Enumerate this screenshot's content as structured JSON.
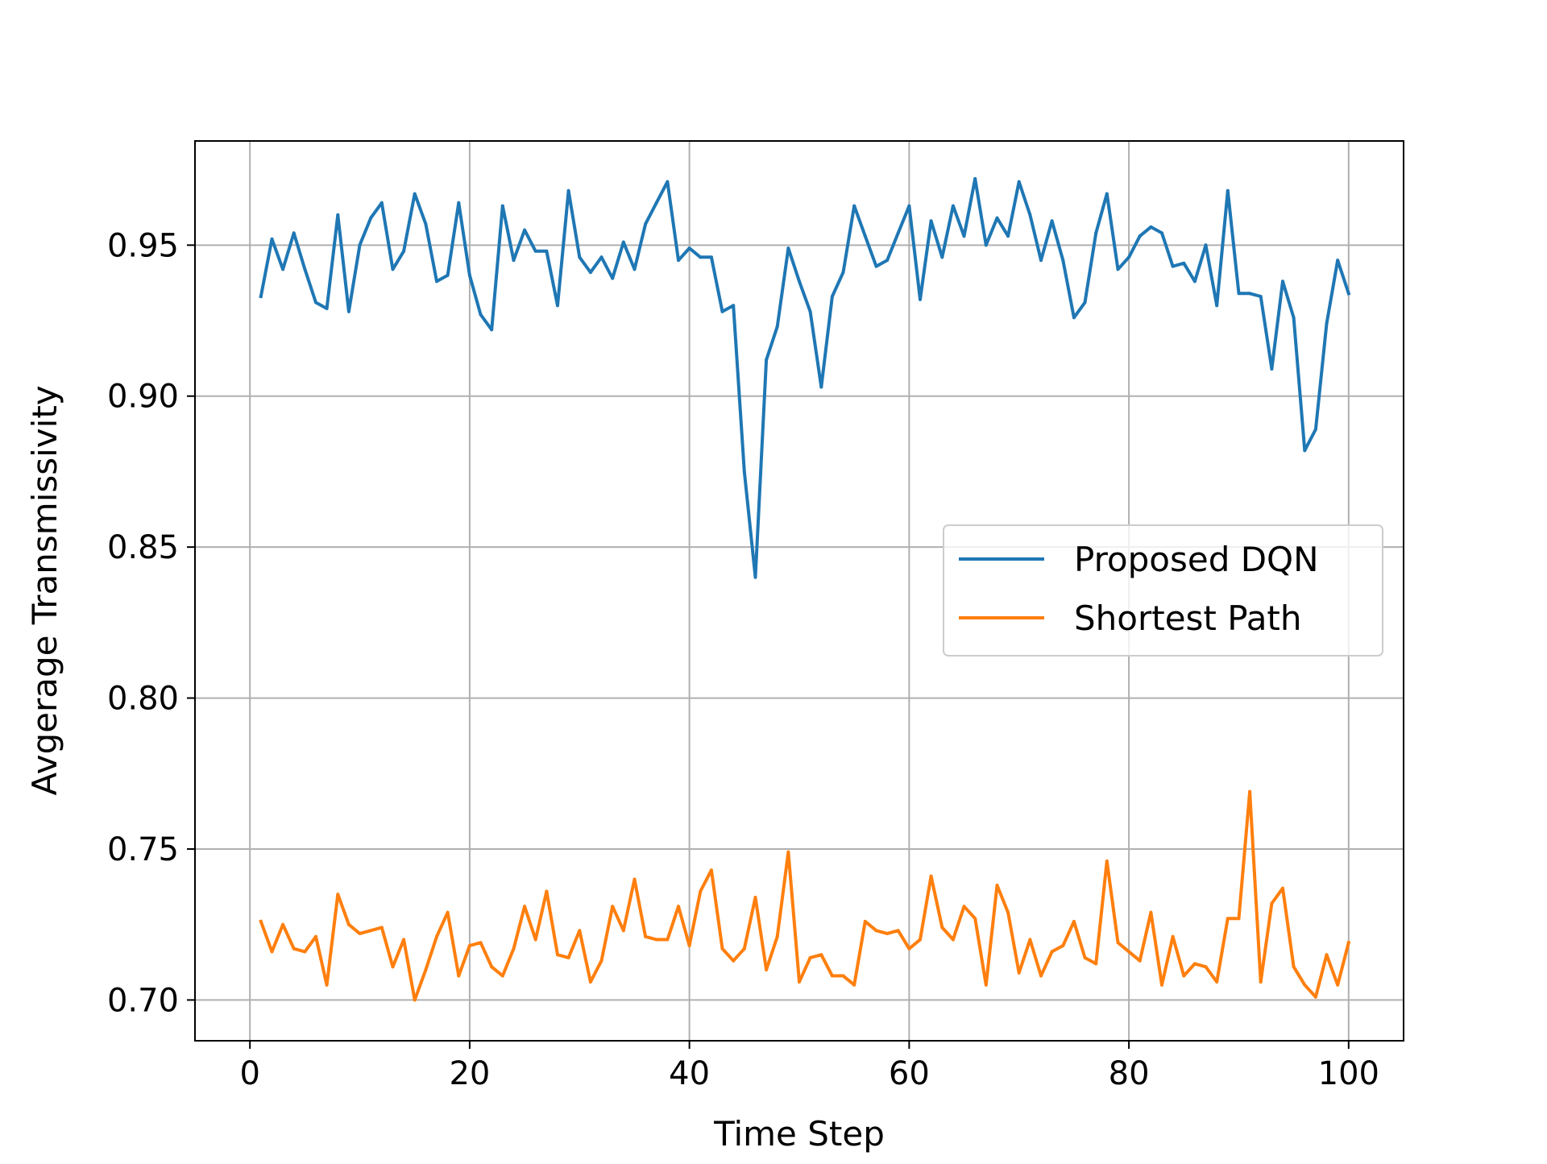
{
  "chart_data": {
    "type": "line",
    "title": "",
    "xlabel": "Time Step",
    "ylabel": "Avgerage Transmissivity",
    "xlim": [
      -5,
      105
    ],
    "ylim": [
      0.6865,
      0.9845
    ],
    "xticks": [
      0,
      20,
      40,
      60,
      80,
      100
    ],
    "yticks": [
      0.7,
      0.75,
      0.8,
      0.85,
      0.9,
      0.95
    ],
    "xtick_labels": [
      "0",
      "20",
      "40",
      "60",
      "80",
      "100"
    ],
    "ytick_labels": [
      "0.70",
      "0.75",
      "0.80",
      "0.85",
      "0.90",
      "0.95"
    ],
    "grid": true,
    "legend_position": "center-right",
    "x": [
      1,
      2,
      3,
      4,
      5,
      6,
      7,
      8,
      9,
      10,
      11,
      12,
      13,
      14,
      15,
      16,
      17,
      18,
      19,
      20,
      21,
      22,
      23,
      24,
      25,
      26,
      27,
      28,
      29,
      30,
      31,
      32,
      33,
      34,
      35,
      36,
      37,
      38,
      39,
      40,
      41,
      42,
      43,
      44,
      45,
      46,
      47,
      48,
      49,
      50,
      51,
      52,
      53,
      54,
      55,
      56,
      57,
      58,
      59,
      60,
      61,
      62,
      63,
      64,
      65,
      66,
      67,
      68,
      69,
      70,
      71,
      72,
      73,
      74,
      75,
      76,
      77,
      78,
      79,
      80,
      81,
      82,
      83,
      84,
      85,
      86,
      87,
      88,
      89,
      90,
      91,
      92,
      93,
      94,
      95,
      96,
      97,
      98,
      99,
      100
    ],
    "series": [
      {
        "name": "Proposed DQN",
        "color": "#1f77b4",
        "values": [
          0.933,
          0.952,
          0.942,
          0.954,
          0.942,
          0.931,
          0.929,
          0.96,
          0.928,
          0.95,
          0.959,
          0.964,
          0.942,
          0.948,
          0.967,
          0.957,
          0.938,
          0.94,
          0.964,
          0.94,
          0.927,
          0.922,
          0.963,
          0.945,
          0.955,
          0.948,
          0.948,
          0.93,
          0.968,
          0.946,
          0.941,
          0.946,
          0.939,
          0.951,
          0.942,
          0.957,
          0.964,
          0.971,
          0.945,
          0.949,
          0.946,
          0.946,
          0.928,
          0.93,
          0.875,
          0.84,
          0.912,
          0.923,
          0.949,
          0.938,
          0.928,
          0.903,
          0.933,
          0.941,
          0.963,
          0.953,
          0.943,
          0.945,
          0.954,
          0.963,
          0.932,
          0.958,
          0.946,
          0.963,
          0.953,
          0.972,
          0.95,
          0.959,
          0.953,
          0.971,
          0.96,
          0.945,
          0.958,
          0.945,
          0.926,
          0.931,
          0.954,
          0.967,
          0.942,
          0.946,
          0.953,
          0.956,
          0.954,
          0.943,
          0.944,
          0.938,
          0.95,
          0.93,
          0.968,
          0.934,
          0.934,
          0.933,
          0.909,
          0.938,
          0.926,
          0.882,
          0.889,
          0.924,
          0.945,
          0.934
        ]
      },
      {
        "name": "Shortest Path",
        "color": "#ff7f0e",
        "values": [
          0.726,
          0.716,
          0.725,
          0.717,
          0.716,
          0.721,
          0.705,
          0.735,
          0.725,
          0.722,
          0.723,
          0.724,
          0.711,
          0.72,
          0.7,
          0.71,
          0.721,
          0.729,
          0.708,
          0.718,
          0.719,
          0.711,
          0.708,
          0.717,
          0.731,
          0.72,
          0.736,
          0.715,
          0.714,
          0.723,
          0.706,
          0.713,
          0.731,
          0.723,
          0.74,
          0.721,
          0.72,
          0.72,
          0.731,
          0.718,
          0.736,
          0.743,
          0.717,
          0.713,
          0.717,
          0.734,
          0.71,
          0.721,
          0.749,
          0.706,
          0.714,
          0.715,
          0.708,
          0.708,
          0.705,
          0.726,
          0.723,
          0.722,
          0.723,
          0.717,
          0.72,
          0.741,
          0.724,
          0.72,
          0.731,
          0.727,
          0.705,
          0.738,
          0.729,
          0.709,
          0.72,
          0.708,
          0.716,
          0.718,
          0.726,
          0.714,
          0.712,
          0.746,
          0.719,
          0.716,
          0.713,
          0.729,
          0.705,
          0.721,
          0.708,
          0.712,
          0.711,
          0.706,
          0.727,
          0.727,
          0.769,
          0.706,
          0.732,
          0.737,
          0.711,
          0.705,
          0.701,
          0.715,
          0.705,
          0.719
        ]
      }
    ]
  }
}
